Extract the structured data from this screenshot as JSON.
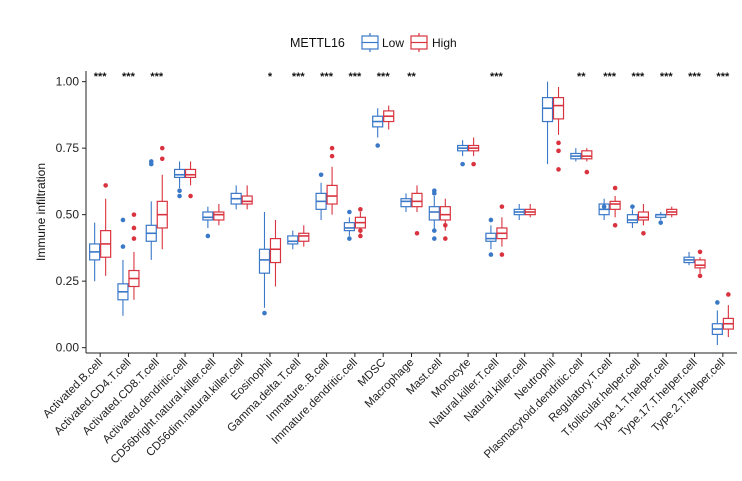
{
  "chart_data": {
    "type": "box",
    "ylabel": "Immune infiltration",
    "xlabel": "",
    "ylim": [
      -0.02,
      1.04
    ],
    "yticks": [
      "0.00",
      "0.25",
      "0.50",
      "0.75",
      "1.00"
    ],
    "ytick_values": [
      0,
      0.25,
      0.5,
      0.75,
      1.0
    ],
    "legend": {
      "title": "METTL16",
      "position": "top",
      "entries": [
        "Low",
        "High"
      ]
    },
    "colors": {
      "Low": "#3a78c8",
      "High": "#d9333f"
    },
    "categories": [
      "Activated.B.cell",
      "Activated.CD4.T.cell",
      "Activated.CD8.T.cell",
      "Activated.dendritic.cell",
      "CD56bright.natural.killer.cell",
      "CD56dim.natural.killer.cell",
      "Eosinophil",
      "Gamma.delta.T.cell",
      "Immature..B.cell",
      "Immature.dendritic.cell",
      "MDSC",
      "Macrophage",
      "Mast.cell",
      "Monocyte",
      "Natural.killer.T.cell",
      "Natural.killer.cell",
      "Neutrophil",
      "Plasmacytoid.dendritic.cell",
      "Regulatory.T.cell",
      "T.follicular.helper.cell",
      "Type.1.T.helper.cell",
      "Type.17.T.helper.cell",
      "Type.2.T.helper.cell"
    ],
    "significance": [
      "***",
      "***",
      "***",
      "",
      "",
      "",
      "*",
      "***",
      "***",
      "***",
      "***",
      "**",
      "",
      "",
      "***",
      "",
      "",
      "**",
      "***",
      "***",
      "***",
      "***",
      "***"
    ],
    "series": [
      {
        "name": "Low",
        "boxes": [
          [
            0.25,
            0.33,
            0.36,
            0.39,
            0.47
          ],
          [
            0.12,
            0.18,
            0.21,
            0.24,
            0.33
          ],
          [
            0.33,
            0.4,
            0.43,
            0.46,
            0.55
          ],
          [
            0.6,
            0.64,
            0.65,
            0.67,
            0.7
          ],
          [
            0.45,
            0.48,
            0.49,
            0.51,
            0.53
          ],
          [
            0.52,
            0.54,
            0.56,
            0.58,
            0.61
          ],
          [
            0.15,
            0.28,
            0.33,
            0.37,
            0.51
          ],
          [
            0.37,
            0.39,
            0.4,
            0.42,
            0.44
          ],
          [
            0.48,
            0.52,
            0.55,
            0.58,
            0.62
          ],
          [
            0.42,
            0.44,
            0.45,
            0.47,
            0.49
          ],
          [
            0.79,
            0.83,
            0.85,
            0.87,
            0.9
          ],
          [
            0.51,
            0.53,
            0.55,
            0.56,
            0.58
          ],
          [
            0.44,
            0.48,
            0.51,
            0.53,
            0.57
          ],
          [
            0.72,
            0.74,
            0.75,
            0.76,
            0.78
          ],
          [
            0.37,
            0.4,
            0.41,
            0.43,
            0.46
          ],
          [
            0.48,
            0.5,
            0.51,
            0.52,
            0.54
          ],
          [
            0.69,
            0.85,
            0.9,
            0.94,
            1.0
          ],
          [
            0.7,
            0.71,
            0.72,
            0.73,
            0.75
          ],
          [
            0.48,
            0.5,
            0.52,
            0.54,
            0.56
          ],
          [
            0.45,
            0.47,
            0.48,
            0.5,
            0.52
          ],
          [
            0.48,
            0.49,
            0.5,
            0.5,
            0.51
          ],
          [
            0.31,
            0.32,
            0.33,
            0.34,
            0.36
          ],
          [
            0.01,
            0.05,
            0.07,
            0.09,
            0.14
          ]
        ],
        "outliers": [
          [],
          [
            0.38,
            0.48
          ],
          [
            0.69,
            0.7
          ],
          [
            0.57,
            0.59
          ],
          [
            0.42
          ],
          [],
          [
            0.13
          ],
          [],
          [
            0.65
          ],
          [
            0.41,
            0.51
          ],
          [
            0.76
          ],
          [],
          [
            0.41,
            0.44,
            0.58,
            0.59
          ],
          [
            0.69
          ],
          [
            0.35,
            0.48
          ],
          [],
          [],
          [],
          [
            0.53
          ],
          [
            0.53
          ],
          [
            0.47
          ],
          [],
          [
            0.17
          ]
        ]
      },
      {
        "name": "High",
        "boxes": [
          [
            0.27,
            0.34,
            0.39,
            0.44,
            0.56
          ],
          [
            0.18,
            0.23,
            0.26,
            0.29,
            0.36
          ],
          [
            0.37,
            0.45,
            0.5,
            0.55,
            0.65
          ],
          [
            0.61,
            0.64,
            0.65,
            0.67,
            0.7
          ],
          [
            0.46,
            0.48,
            0.5,
            0.51,
            0.54
          ],
          [
            0.52,
            0.54,
            0.55,
            0.57,
            0.61
          ],
          [
            0.23,
            0.32,
            0.37,
            0.41,
            0.48
          ],
          [
            0.38,
            0.4,
            0.42,
            0.43,
            0.46
          ],
          [
            0.5,
            0.54,
            0.57,
            0.61,
            0.68
          ],
          [
            0.43,
            0.45,
            0.47,
            0.49,
            0.51
          ],
          [
            0.82,
            0.85,
            0.87,
            0.89,
            0.91
          ],
          [
            0.51,
            0.53,
            0.55,
            0.58,
            0.61
          ],
          [
            0.44,
            0.48,
            0.5,
            0.53,
            0.56
          ],
          [
            0.72,
            0.74,
            0.75,
            0.76,
            0.79
          ],
          [
            0.38,
            0.41,
            0.43,
            0.45,
            0.49
          ],
          [
            0.49,
            0.5,
            0.51,
            0.52,
            0.54
          ],
          [
            0.8,
            0.86,
            0.91,
            0.94,
            0.98
          ],
          [
            0.7,
            0.71,
            0.72,
            0.74,
            0.75
          ],
          [
            0.49,
            0.52,
            0.54,
            0.55,
            0.57
          ],
          [
            0.46,
            0.48,
            0.49,
            0.51,
            0.54
          ],
          [
            0.49,
            0.5,
            0.51,
            0.52,
            0.53
          ],
          [
            0.28,
            0.3,
            0.31,
            0.33,
            0.34
          ],
          [
            0.04,
            0.07,
            0.09,
            0.11,
            0.16
          ]
        ],
        "outliers": [
          [
            0.61
          ],
          [
            0.41,
            0.45,
            0.5
          ],
          [
            0.71,
            0.75
          ],
          [
            0.57
          ],
          [],
          [],
          [],
          [],
          [
            0.72,
            0.75
          ],
          [
            0.42,
            0.44,
            0.52
          ],
          [],
          [
            0.43
          ],
          [
            0.41,
            0.46
          ],
          [
            0.69
          ],
          [
            0.35,
            0.53
          ],
          [],
          [
            0.67,
            0.74,
            0.77
          ],
          [
            0.66
          ],
          [
            0.46,
            0.6
          ],
          [
            0.43
          ],
          [],
          [
            0.27,
            0.36
          ],
          [
            0.2
          ]
        ]
      }
    ]
  }
}
